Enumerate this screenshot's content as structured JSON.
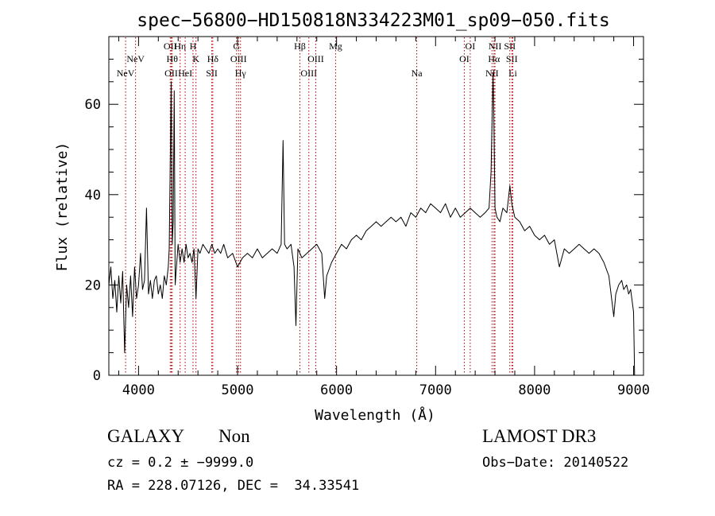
{
  "chart_data": {
    "type": "line",
    "title": "spec−56800−HD150818N334223M01_sp09−050.fits",
    "xlabel": "Wavelength (Å)",
    "ylabel": "Flux (relative)",
    "xlim": [
      3700,
      9100
    ],
    "ylim": [
      0,
      75
    ],
    "x_ticks": [
      4000,
      5000,
      6000,
      7000,
      8000,
      9000
    ],
    "y_ticks": [
      0,
      20,
      40,
      60
    ],
    "grid": false,
    "series": [
      {
        "color": "#000000",
        "points": [
          [
            3700,
            20
          ],
          [
            3720,
            24
          ],
          [
            3740,
            17
          ],
          [
            3760,
            21
          ],
          [
            3780,
            14
          ],
          [
            3800,
            22
          ],
          [
            3820,
            16
          ],
          [
            3840,
            23
          ],
          [
            3860,
            5
          ],
          [
            3880,
            20
          ],
          [
            3900,
            15
          ],
          [
            3920,
            22
          ],
          [
            3940,
            13
          ],
          [
            3960,
            24
          ],
          [
            3980,
            17
          ],
          [
            4000,
            20
          ],
          [
            4020,
            27
          ],
          [
            4040,
            19
          ],
          [
            4060,
            21
          ],
          [
            4080,
            37
          ],
          [
            4100,
            18
          ],
          [
            4120,
            21
          ],
          [
            4140,
            17
          ],
          [
            4160,
            21
          ],
          [
            4180,
            22
          ],
          [
            4200,
            18
          ],
          [
            4220,
            20
          ],
          [
            4240,
            17
          ],
          [
            4260,
            22
          ],
          [
            4280,
            20
          ],
          [
            4300,
            24
          ],
          [
            4310,
            28
          ],
          [
            4330,
            65
          ],
          [
            4340,
            29
          ],
          [
            4350,
            34
          ],
          [
            4360,
            63
          ],
          [
            4370,
            20
          ],
          [
            4380,
            23
          ],
          [
            4400,
            29
          ],
          [
            4420,
            25
          ],
          [
            4440,
            28
          ],
          [
            4460,
            25
          ],
          [
            4480,
            29
          ],
          [
            4500,
            26
          ],
          [
            4520,
            27
          ],
          [
            4540,
            25
          ],
          [
            4560,
            28
          ],
          [
            4580,
            17
          ],
          [
            4600,
            28
          ],
          [
            4620,
            27
          ],
          [
            4650,
            29
          ],
          [
            4680,
            28
          ],
          [
            4710,
            27
          ],
          [
            4740,
            29
          ],
          [
            4770,
            27
          ],
          [
            4800,
            28
          ],
          [
            4830,
            27
          ],
          [
            4860,
            29
          ],
          [
            4900,
            26
          ],
          [
            4950,
            27
          ],
          [
            5000,
            24
          ],
          [
            5050,
            26
          ],
          [
            5100,
            27
          ],
          [
            5150,
            26
          ],
          [
            5200,
            28
          ],
          [
            5250,
            26
          ],
          [
            5300,
            27
          ],
          [
            5350,
            28
          ],
          [
            5400,
            27
          ],
          [
            5440,
            29
          ],
          [
            5460,
            52
          ],
          [
            5475,
            29
          ],
          [
            5500,
            28
          ],
          [
            5540,
            29
          ],
          [
            5570,
            24
          ],
          [
            5590,
            11
          ],
          [
            5610,
            28
          ],
          [
            5650,
            26
          ],
          [
            5700,
            27
          ],
          [
            5750,
            28
          ],
          [
            5800,
            29
          ],
          [
            5850,
            27
          ],
          [
            5880,
            17
          ],
          [
            5900,
            22
          ],
          [
            5950,
            25
          ],
          [
            6000,
            27
          ],
          [
            6050,
            29
          ],
          [
            6100,
            28
          ],
          [
            6150,
            30
          ],
          [
            6200,
            31
          ],
          [
            6250,
            30
          ],
          [
            6300,
            32
          ],
          [
            6350,
            33
          ],
          [
            6400,
            34
          ],
          [
            6450,
            33
          ],
          [
            6500,
            34
          ],
          [
            6550,
            35
          ],
          [
            6600,
            34
          ],
          [
            6650,
            35
          ],
          [
            6700,
            33
          ],
          [
            6750,
            36
          ],
          [
            6800,
            35
          ],
          [
            6850,
            37
          ],
          [
            6900,
            36
          ],
          [
            6950,
            38
          ],
          [
            7000,
            37
          ],
          [
            7050,
            36
          ],
          [
            7100,
            38
          ],
          [
            7150,
            35
          ],
          [
            7200,
            37
          ],
          [
            7250,
            35
          ],
          [
            7300,
            36
          ],
          [
            7350,
            37
          ],
          [
            7400,
            36
          ],
          [
            7450,
            35
          ],
          [
            7500,
            36
          ],
          [
            7540,
            37
          ],
          [
            7560,
            45
          ],
          [
            7580,
            67
          ],
          [
            7590,
            55
          ],
          [
            7600,
            37
          ],
          [
            7620,
            35
          ],
          [
            7650,
            34
          ],
          [
            7680,
            37
          ],
          [
            7720,
            36
          ],
          [
            7750,
            42
          ],
          [
            7770,
            38
          ],
          [
            7800,
            35
          ],
          [
            7850,
            34
          ],
          [
            7900,
            32
          ],
          [
            7950,
            33
          ],
          [
            8000,
            31
          ],
          [
            8050,
            30
          ],
          [
            8100,
            31
          ],
          [
            8150,
            29
          ],
          [
            8200,
            30
          ],
          [
            8250,
            24
          ],
          [
            8300,
            28
          ],
          [
            8350,
            27
          ],
          [
            8400,
            28
          ],
          [
            8450,
            29
          ],
          [
            8500,
            28
          ],
          [
            8550,
            27
          ],
          [
            8600,
            28
          ],
          [
            8650,
            27
          ],
          [
            8700,
            25
          ],
          [
            8750,
            22
          ],
          [
            8800,
            13
          ],
          [
            8820,
            18
          ],
          [
            8850,
            20
          ],
          [
            8880,
            21
          ],
          [
            8900,
            19
          ],
          [
            8930,
            20
          ],
          [
            8950,
            18
          ],
          [
            8970,
            19
          ],
          [
            9000,
            14
          ],
          [
            9010,
            0
          ]
        ]
      }
    ],
    "line_markers": [
      {
        "label": "NeV",
        "wavelength": 3869,
        "row": 3
      },
      {
        "label": "NeV",
        "wavelength": 3970,
        "row": 2
      },
      {
        "label": "OII",
        "wavelength": 4320,
        "row": 1
      },
      {
        "label": "OII",
        "wavelength": 4330,
        "row": 3
      },
      {
        "label": "Hθ",
        "wavelength": 4340,
        "row": 2
      },
      {
        "label": "Hη",
        "wavelength": 4420,
        "row": 1
      },
      {
        "label": "HeI",
        "wavelength": 4471,
        "row": 3
      },
      {
        "label": "H",
        "wavelength": 4550,
        "row": 1
      },
      {
        "label": "K",
        "wavelength": 4580,
        "row": 2
      },
      {
        "label": "SII",
        "wavelength": 4740,
        "row": 3
      },
      {
        "label": "Hδ",
        "wavelength": 4750,
        "row": 2
      },
      {
        "label": "G",
        "wavelength": 4990,
        "row": 1
      },
      {
        "label": "OIII",
        "wavelength": 5010,
        "row": 2
      },
      {
        "label": "Hγ",
        "wavelength": 5030,
        "row": 3
      },
      {
        "label": "Hβ",
        "wavelength": 5630,
        "row": 1
      },
      {
        "label": "OIII",
        "wavelength": 5720,
        "row": 3
      },
      {
        "label": "OIII",
        "wavelength": 5790,
        "row": 2
      },
      {
        "label": "Mg",
        "wavelength": 5990,
        "row": 1
      },
      {
        "label": "Na",
        "wavelength": 6810,
        "row": 3
      },
      {
        "label": "OI",
        "wavelength": 7290,
        "row": 2
      },
      {
        "label": "OI",
        "wavelength": 7350,
        "row": 1
      },
      {
        "label": "NII",
        "wavelength": 7570,
        "row": 3
      },
      {
        "label": "Hα",
        "wavelength": 7590,
        "row": 2
      },
      {
        "label": "NII",
        "wavelength": 7600,
        "row": 1
      },
      {
        "label": "SII",
        "wavelength": 7750,
        "row": 1
      },
      {
        "label": "SII",
        "wavelength": 7770,
        "row": 2
      },
      {
        "label": "Li",
        "wavelength": 7780,
        "row": 3
      }
    ],
    "marker_color": "#aa0000"
  },
  "info": {
    "classification": "GALAXY",
    "subclass": "Non",
    "survey": "LAMOST DR3",
    "cz_line": "cz = 0.2 ± −9999.0",
    "obs_date_line": "Obs−Date: 20140522",
    "radec_line": "RA = 228.07126, DEC =  34.33541"
  }
}
